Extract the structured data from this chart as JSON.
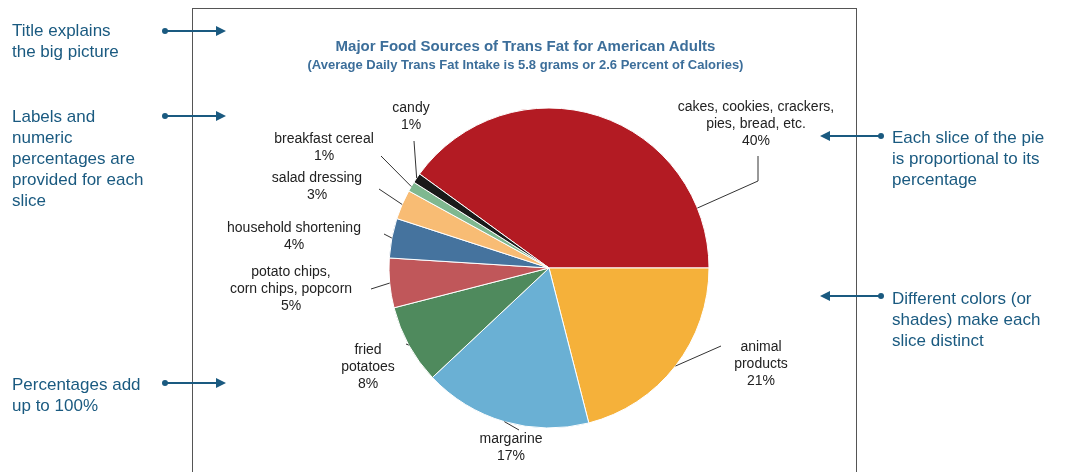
{
  "chart_data": {
    "type": "pie",
    "title": "Major Food Sources of Trans Fat for American Adults",
    "subtitle": "(Average Daily Trans Fat Intake is 5.8 grams or 2.6 Percent of Calories)",
    "categories": [
      "cakes, cookies, crackers, pies, bread, etc.",
      "animal products",
      "margarine",
      "fried potatoes",
      "potato chips, corn chips, popcorn",
      "household shortening",
      "salad dressing",
      "breakfast cereal",
      "candy"
    ],
    "values": [
      40,
      21,
      17,
      8,
      5,
      4,
      3,
      1,
      1
    ],
    "colors": [
      "#b31b23",
      "#f5b13a",
      "#6ab0d4",
      "#4f8a5d",
      "#c0575a",
      "#45739e",
      "#f8bc74",
      "#7fb890",
      "#1a1a1a"
    ],
    "value_labels": [
      "40%",
      "21%",
      "17%",
      "8%",
      "5%",
      "4%",
      "3%",
      "1%",
      "1%"
    ],
    "annotations": [
      "Title explains the big picture",
      "Labels and numeric percentages are provided for each slice",
      "Percentages add up to 100%",
      "Each slice of the pie is proportional to its percentage",
      "Different colors (or shades) make each slice distinct"
    ]
  }
}
